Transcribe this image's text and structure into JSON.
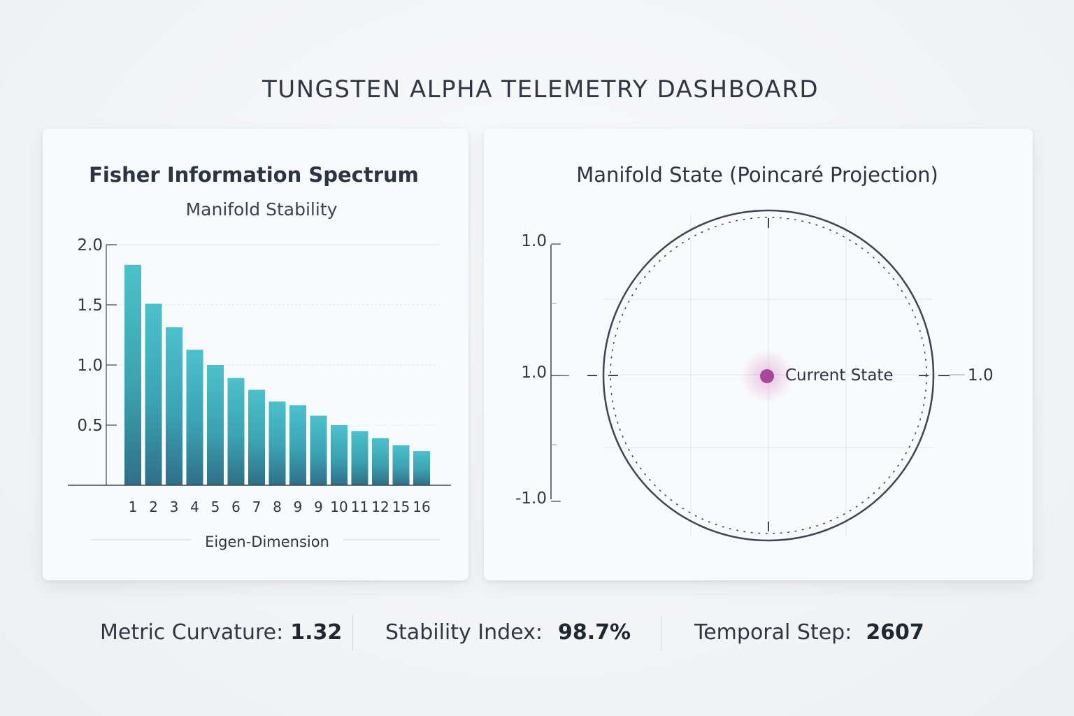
{
  "dashboard": {
    "title": "TUNGSTEN ALPHA TELEMETRY DASHBOARD"
  },
  "chart_data": [
    {
      "type": "bar",
      "title": "Fisher Information Spectrum",
      "subtitle": "Manifold Stability",
      "xlabel": "Eigen-Dimension",
      "ylabel": "",
      "ylim": [
        0,
        2.0
      ],
      "yticks": [
        "2.0",
        "1.5",
        "1.0",
        "0.5"
      ],
      "categories": [
        "1",
        "2",
        "3",
        "4",
        "5",
        "6",
        "7",
        "8",
        "9",
        "9",
        "10",
        "11",
        "12",
        "15",
        "16"
      ],
      "values": [
        1.87,
        1.54,
        1.34,
        1.15,
        1.02,
        0.91,
        0.81,
        0.71,
        0.68,
        0.59,
        0.51,
        0.46,
        0.4,
        0.34,
        0.29
      ],
      "grid": true,
      "bar_color": "#3fa9b6"
    },
    {
      "type": "scatter",
      "title": "Manifold State (Poincaré Projection)",
      "xlim": [
        -1.0,
        1.0
      ],
      "ylim": [
        -1.0,
        1.0
      ],
      "yticks": [
        "1.0",
        "1.0",
        "-1.0"
      ],
      "right_tick": "1.0",
      "points": [
        {
          "x": 0.0,
          "y": 0.0,
          "label": "Current State"
        }
      ],
      "point_color": "#a9469e",
      "grid": true
    }
  ],
  "stats": [
    {
      "label": "Metric Curvature:",
      "value": "1.32"
    },
    {
      "label": "Stability Index:",
      "value": "98.7%"
    },
    {
      "label": "Temporal Step:",
      "value": "2607"
    }
  ]
}
